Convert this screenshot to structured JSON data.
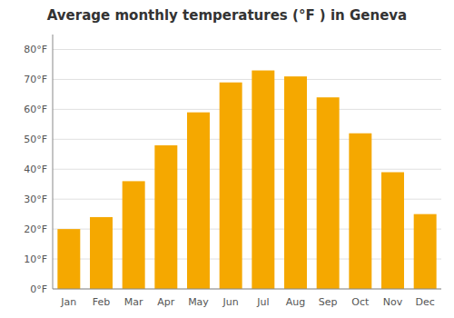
{
  "chart_data": {
    "type": "bar",
    "title": "Average monthly temperatures (°F ) in Geneva",
    "categories": [
      "Jan",
      "Feb",
      "Mar",
      "Apr",
      "May",
      "Jun",
      "Jul",
      "Aug",
      "Sep",
      "Oct",
      "Nov",
      "Dec"
    ],
    "values": [
      20,
      24,
      36,
      48,
      59,
      69,
      73,
      71,
      64,
      52,
      39,
      25
    ],
    "color": "#F5A800",
    "ylim": [
      0,
      85
    ],
    "yticks": [
      {
        "value": 0,
        "label": "0°F"
      },
      {
        "value": 10,
        "label": "10°F"
      },
      {
        "value": 20,
        "label": "20°F"
      },
      {
        "value": 30,
        "label": "30°F"
      },
      {
        "value": 40,
        "label": "40°F"
      },
      {
        "value": 50,
        "label": "50°F"
      },
      {
        "value": 60,
        "label": "60°F"
      },
      {
        "value": 70,
        "label": "70°F"
      },
      {
        "value": 80,
        "label": "80°F"
      }
    ],
    "grid": true
  }
}
